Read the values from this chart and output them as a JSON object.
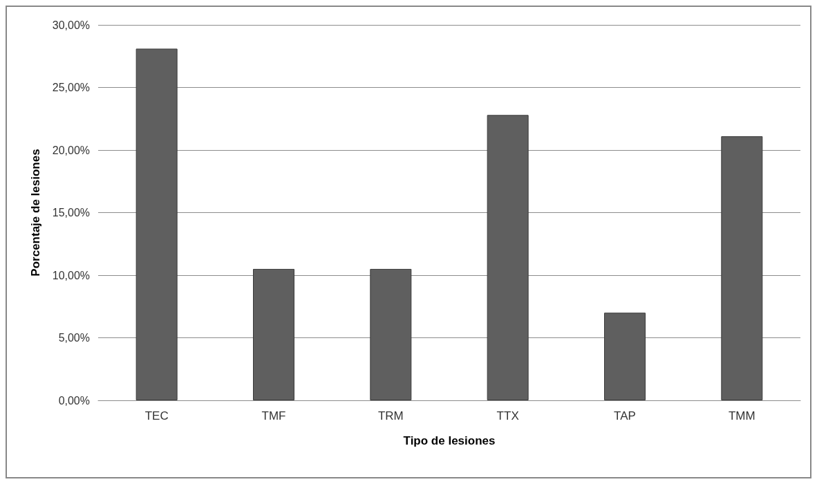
{
  "chart_data": {
    "type": "bar",
    "xlabel": "Tipo de lesiones",
    "ylabel": "Porcentaje de lesiones",
    "categories": [
      "TEC",
      "TMF",
      "TRM",
      "TTX",
      "TAP",
      "TMM"
    ],
    "values": [
      28.1,
      10.5,
      10.5,
      22.8,
      7.0,
      21.1
    ],
    "color": "#5f5f5f",
    "ylim": [
      0,
      30
    ],
    "yticks": [
      {
        "value": 0,
        "label": "0,00%"
      },
      {
        "value": 5,
        "label": "5,00%"
      },
      {
        "value": 10,
        "label": "10,00%"
      },
      {
        "value": 15,
        "label": "15,00%"
      },
      {
        "value": 20,
        "label": "20,00%"
      },
      {
        "value": 25,
        "label": "25,00%"
      },
      {
        "value": 30,
        "label": "30,00%"
      }
    ],
    "grid": "y"
  }
}
